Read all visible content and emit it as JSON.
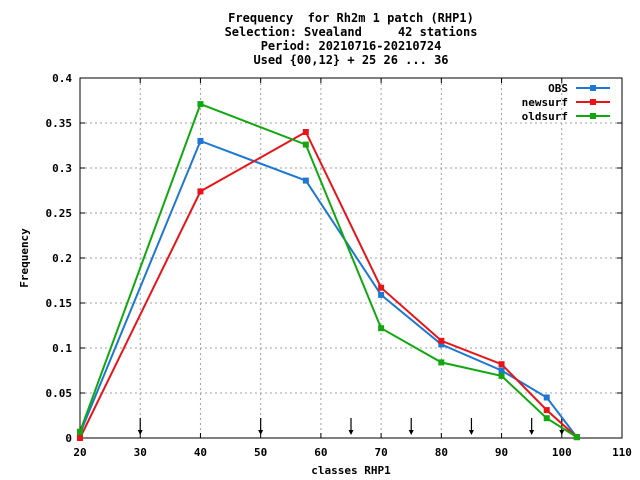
{
  "chart_data": {
    "type": "line",
    "title_lines": [
      "Frequency  for Rh2m 1 patch (RHP1)",
      "Selection: Svealand     42 stations",
      "Period: 20210716-20210724",
      "Used {00,12} + 25 26 ... 36"
    ],
    "xlabel": "classes RHP1",
    "ylabel": "Frequency",
    "xlim": [
      20,
      110
    ],
    "ylim": [
      0,
      0.4
    ],
    "xticks": [
      20,
      30,
      40,
      50,
      60,
      70,
      80,
      90,
      100,
      110
    ],
    "yticks": [
      0,
      0.05,
      0.1,
      0.15,
      0.2,
      0.25,
      0.3,
      0.35,
      0.4
    ],
    "ytick_labels": [
      "0",
      "0.05",
      "0.1",
      "0.15",
      "0.2",
      "0.25",
      "0.3",
      "0.35",
      "0.4"
    ],
    "grid": true,
    "legend_position": "top-right",
    "arrow_markers_x": [
      30,
      50,
      65,
      75,
      85,
      95,
      100
    ],
    "series": [
      {
        "name": "OBS",
        "color": "#1f77d4",
        "points": [
          [
            20,
            0.005
          ],
          [
            40,
            0.33
          ],
          [
            57.5,
            0.286
          ],
          [
            70,
            0.159
          ],
          [
            80,
            0.104
          ],
          [
            90,
            0.075
          ],
          [
            97.5,
            0.045
          ],
          [
            102.5,
            0.001
          ]
        ]
      },
      {
        "name": "newsurf",
        "color": "#e8141a",
        "points": [
          [
            20,
            0.0
          ],
          [
            40,
            0.274
          ],
          [
            57.5,
            0.34
          ],
          [
            70,
            0.167
          ],
          [
            80,
            0.108
          ],
          [
            90,
            0.082
          ],
          [
            97.5,
            0.031
          ],
          [
            102.5,
            0.001
          ]
        ]
      },
      {
        "name": "oldsurf",
        "color": "#11a80f",
        "points": [
          [
            20,
            0.007
          ],
          [
            40,
            0.371
          ],
          [
            57.5,
            0.326
          ],
          [
            70,
            0.122
          ],
          [
            80,
            0.084
          ],
          [
            90,
            0.069
          ],
          [
            97.5,
            0.022
          ],
          [
            102.5,
            0.001
          ]
        ]
      }
    ]
  }
}
